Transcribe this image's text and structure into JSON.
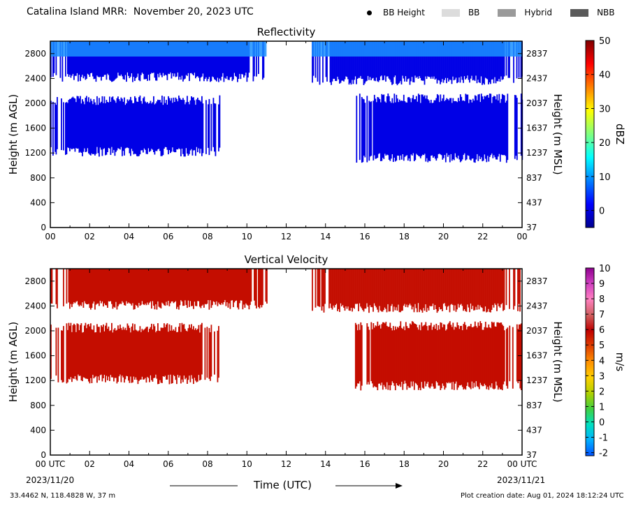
{
  "header": {
    "title": "Catalina Island MRR:  November 20, 2023 UTC",
    "legend": [
      {
        "label": "BB Height",
        "marker": "dot",
        "color": "#000000"
      },
      {
        "label": "BB",
        "marker": "bar",
        "color": "#dcdcdc"
      },
      {
        "label": "Hybrid",
        "marker": "bar",
        "color": "#9a9a9a"
      },
      {
        "label": "NBB",
        "marker": "bar",
        "color": "#5a5a5a"
      }
    ]
  },
  "footer": {
    "location": "33.4462 N, 118.4828 W, 37 m",
    "creation": "Plot creation date: Aug 01, 2024 18:12:24 UTC",
    "start_date": "2023/11/20",
    "end_date": "2023/11/21",
    "time_label": "Time (UTC)"
  },
  "chart_data": [
    {
      "type": "heatmap",
      "title": "Reflectivity",
      "xlabel": "Time (UTC)",
      "ylabel": "Height (m AGL)",
      "ylabel_right": "Height (m MSL)",
      "xticks": [
        "00",
        "02",
        "04",
        "06",
        "08",
        "10",
        "12",
        "14",
        "16",
        "18",
        "20",
        "22",
        "00"
      ],
      "xlim": [
        0,
        24
      ],
      "ylim": [
        0,
        3000
      ],
      "yticks": [
        0,
        400,
        800,
        1200,
        1600,
        2000,
        2400,
        2800
      ],
      "yticks_right": [
        "37",
        "437",
        "837",
        "1237",
        "1637",
        "2037",
        "2437",
        "2837"
      ],
      "colorbar": {
        "label": "dBZ",
        "range": [
          -5,
          50
        ],
        "ticks": [
          0,
          10,
          20,
          30,
          40,
          50
        ],
        "colors": [
          "#00008f",
          "#0000ff",
          "#0080ff",
          "#00ffff",
          "#80ff80",
          "#ffff00",
          "#ff8000",
          "#ff0000",
          "#800000"
        ]
      },
      "fill_color": "#0000e6",
      "top_color": "#1a90ff",
      "echo_regions": [
        {
          "label": "upper layer",
          "t_start": 0.0,
          "t_end": 11.0,
          "h_bottom": 2450,
          "h_top": 3000
        },
        {
          "label": "upper layer",
          "t_start": 13.3,
          "t_end": 24.0,
          "h_bottom": 2400,
          "h_top": 3000
        },
        {
          "label": "lower layer",
          "t_start": 0.0,
          "t_end": 8.6,
          "h_bottom": 1250,
          "h_top": 2050
        },
        {
          "label": "lower layer",
          "t_start": 15.5,
          "t_end": 24.0,
          "h_bottom": 1150,
          "h_top": 2080
        }
      ]
    },
    {
      "type": "heatmap",
      "title": "Vertical Velocity",
      "xlabel": "Time (UTC)",
      "ylabel": "Height (m AGL)",
      "ylabel_right": "Height (m MSL)",
      "xticks": [
        "00 UTC",
        "02",
        "04",
        "06",
        "08",
        "10",
        "12",
        "14",
        "16",
        "18",
        "20",
        "22",
        "00 UTC"
      ],
      "xlim": [
        0,
        24
      ],
      "ylim": [
        0,
        3000
      ],
      "yticks": [
        0,
        400,
        800,
        1200,
        1600,
        2000,
        2400,
        2800
      ],
      "yticks_right": [
        "37",
        "437",
        "837",
        "1237",
        "1637",
        "2037",
        "2437",
        "2837"
      ],
      "colorbar": {
        "label": "m/s",
        "range": [
          -2.2,
          10
        ],
        "ticks": [
          -2,
          -1,
          0,
          1,
          2,
          3,
          4,
          5,
          6,
          7,
          8,
          9,
          10
        ],
        "colors": [
          "#0050ff",
          "#00b0ff",
          "#00e0c0",
          "#40d040",
          "#b0d000",
          "#ffd000",
          "#ff9000",
          "#e04000",
          "#c00000",
          "#d06060",
          "#ff80c0",
          "#d040c0",
          "#900090"
        ]
      },
      "fill_color": "#c40d00",
      "top_color": "#c40d00",
      "echo_regions": [
        {
          "label": "upper layer",
          "t_start": 0.0,
          "t_end": 11.0,
          "h_bottom": 2450,
          "h_top": 3000
        },
        {
          "label": "upper layer",
          "t_start": 13.3,
          "t_end": 24.0,
          "h_bottom": 2400,
          "h_top": 3000
        },
        {
          "label": "lower layer",
          "t_start": 0.0,
          "t_end": 8.6,
          "h_bottom": 1250,
          "h_top": 2050
        },
        {
          "label": "lower layer",
          "t_start": 15.5,
          "t_end": 24.0,
          "h_bottom": 1150,
          "h_top": 2080
        }
      ]
    }
  ]
}
